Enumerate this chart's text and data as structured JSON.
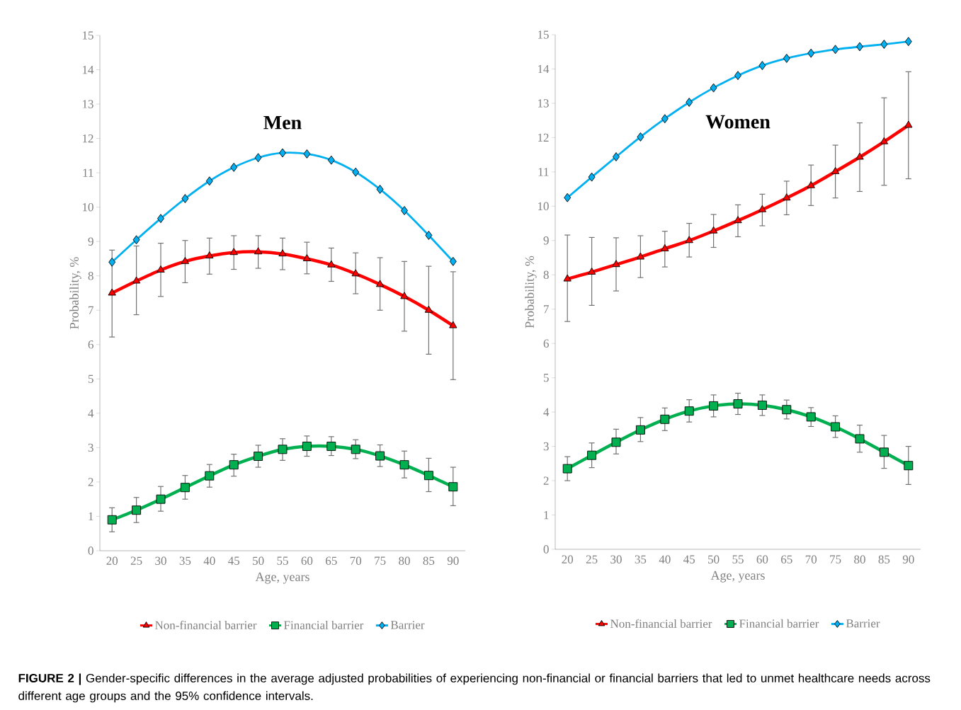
{
  "chart_data": [
    {
      "type": "line",
      "title": "Men",
      "xlabel": "Age, years",
      "ylabel": "Probability, %",
      "categories": [
        "20",
        "25",
        "30",
        "35",
        "40",
        "45",
        "50",
        "55",
        "60",
        "65",
        "70",
        "75",
        "80",
        "85",
        "90"
      ],
      "ylim": [
        0,
        15
      ],
      "yticks": [
        0,
        1,
        2,
        3,
        4,
        5,
        6,
        7,
        8,
        9,
        10,
        11,
        12,
        13,
        14,
        15
      ],
      "legend": "bottom",
      "series": [
        {
          "name": "Non-financial barrier",
          "color": "#ff0000",
          "marker": "triangle",
          "values": [
            7.5,
            7.85,
            8.17,
            8.42,
            8.58,
            8.68,
            8.7,
            8.64,
            8.5,
            8.32,
            8.06,
            7.75,
            7.4,
            7.0,
            6.55
          ],
          "errors": [
            [
              6.22,
              8.75
            ],
            [
              6.87,
              8.87
            ],
            [
              7.4,
              8.95
            ],
            [
              7.8,
              9.03
            ],
            [
              8.05,
              9.1
            ],
            [
              8.19,
              9.17
            ],
            [
              8.22,
              9.17
            ],
            [
              8.18,
              9.1
            ],
            [
              8.06,
              8.98
            ],
            [
              7.84,
              8.81
            ],
            [
              7.48,
              8.67
            ],
            [
              7.0,
              8.53
            ],
            [
              6.39,
              8.42
            ],
            [
              5.72,
              8.28
            ],
            [
              4.98,
              8.12
            ]
          ]
        },
        {
          "name": "Financial barrier",
          "color": "#00b050",
          "marker": "square",
          "values": [
            0.9,
            1.18,
            1.5,
            1.84,
            2.18,
            2.5,
            2.75,
            2.95,
            3.04,
            3.04,
            2.95,
            2.76,
            2.5,
            2.19,
            1.86
          ],
          "errors": [
            [
              0.55,
              1.25
            ],
            [
              0.82,
              1.55
            ],
            [
              1.15,
              1.87
            ],
            [
              1.5,
              2.19
            ],
            [
              1.85,
              2.51
            ],
            [
              2.17,
              2.81
            ],
            [
              2.43,
              3.07
            ],
            [
              2.63,
              3.26
            ],
            [
              2.75,
              3.34
            ],
            [
              2.77,
              3.32
            ],
            [
              2.68,
              3.23
            ],
            [
              2.45,
              3.08
            ],
            [
              2.12,
              2.9
            ],
            [
              1.72,
              2.69
            ],
            [
              1.31,
              2.43
            ]
          ]
        },
        {
          "name": "Barrier",
          "color": "#00b0f0",
          "marker": "diamond",
          "values": [
            8.4,
            9.05,
            9.67,
            10.25,
            10.76,
            11.16,
            11.44,
            11.58,
            11.55,
            11.37,
            11.02,
            10.52,
            9.9,
            9.18,
            8.42
          ]
        }
      ]
    },
    {
      "type": "line",
      "title": "Women",
      "xlabel": "Age, years",
      "ylabel": "Probability, %",
      "categories": [
        "20",
        "25",
        "30",
        "35",
        "40",
        "45",
        "50",
        "55",
        "60",
        "65",
        "70",
        "75",
        "80",
        "85",
        "90"
      ],
      "ylim": [
        0,
        15
      ],
      "yticks": [
        0,
        1,
        2,
        3,
        4,
        5,
        6,
        7,
        8,
        9,
        10,
        11,
        12,
        13,
        14,
        15
      ],
      "legend": "bottom",
      "series": [
        {
          "name": "Non-financial barrier",
          "color": "#ff0000",
          "marker": "triangle",
          "values": [
            7.88,
            8.08,
            8.3,
            8.52,
            8.76,
            9.0,
            9.28,
            9.58,
            9.9,
            10.24,
            10.6,
            11.01,
            11.43,
            11.88,
            12.36
          ],
          "errors": [
            [
              6.64,
              9.16
            ],
            [
              7.11,
              9.09
            ],
            [
              7.53,
              9.08
            ],
            [
              7.92,
              9.14
            ],
            [
              8.23,
              9.27
            ],
            [
              8.52,
              9.5
            ],
            [
              8.8,
              9.76
            ],
            [
              9.11,
              10.04
            ],
            [
              9.43,
              10.35
            ],
            [
              9.75,
              10.73
            ],
            [
              10.02,
              11.2
            ],
            [
              10.24,
              11.78
            ],
            [
              10.43,
              12.43
            ],
            [
              10.61,
              13.16
            ],
            [
              10.8,
              13.92
            ]
          ]
        },
        {
          "name": "Financial barrier",
          "color": "#00b050",
          "marker": "square",
          "values": [
            2.35,
            2.74,
            3.12,
            3.48,
            3.79,
            4.03,
            4.18,
            4.24,
            4.2,
            4.07,
            3.86,
            3.57,
            3.22,
            2.83,
            2.44
          ],
          "errors": [
            [
              2.0,
              2.7
            ],
            [
              2.38,
              3.1
            ],
            [
              2.78,
              3.5
            ],
            [
              3.14,
              3.84
            ],
            [
              3.46,
              4.12
            ],
            [
              3.71,
              4.36
            ],
            [
              3.86,
              4.5
            ],
            [
              3.93,
              4.55
            ],
            [
              3.9,
              4.5
            ],
            [
              3.8,
              4.35
            ],
            [
              3.58,
              4.13
            ],
            [
              3.26,
              3.89
            ],
            [
              2.83,
              3.62
            ],
            [
              2.36,
              3.32
            ],
            [
              1.89,
              3.0
            ]
          ]
        },
        {
          "name": "Barrier",
          "color": "#00b0f0",
          "marker": "diamond",
          "values": [
            10.25,
            10.85,
            11.44,
            12.02,
            12.55,
            13.03,
            13.45,
            13.81,
            14.1,
            14.31,
            14.46,
            14.57,
            14.65,
            14.72,
            14.8
          ]
        }
      ],
      "annotations": [
        "**FIGURE 2 |** Gender-specific differences in the average adjusted probabilities of experiencing non-financial or financial barriers that led to unmet healthcare needs across different age groups and the 95% confidence intervals."
      ]
    }
  ]
}
